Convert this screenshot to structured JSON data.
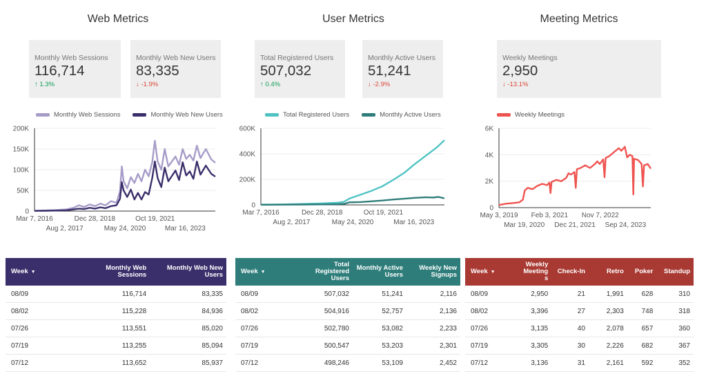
{
  "sections": [
    {
      "title": "Web Metrics",
      "cards": [
        {
          "label": "Monthly Web Sessions",
          "value": "116,714",
          "delta": "1.3%",
          "direction": "up",
          "arrow": "↑"
        },
        {
          "label": "Monthly Web New Users",
          "value": "83,335",
          "delta": "-1.9%",
          "direction": "down",
          "arrow": "↓"
        }
      ],
      "table": {
        "header_color": "#3b2f6b",
        "columns": [
          "Week",
          "Monthly Web Sessions",
          "Monthly Web New Users"
        ],
        "sort_icon": "▼",
        "rows": [
          [
            "08/09",
            "116,714",
            "83,335"
          ],
          [
            "08/02",
            "115,228",
            "84,936"
          ],
          [
            "07/26",
            "113,551",
            "85,020"
          ],
          [
            "07/19",
            "113,255",
            "85,094"
          ],
          [
            "07/12",
            "113,652",
            "85,937"
          ]
        ]
      }
    },
    {
      "title": "User Metrics",
      "cards": [
        {
          "label": "Total Registered Users",
          "value": "507,032",
          "delta": "0.4%",
          "direction": "up",
          "arrow": "↑"
        },
        {
          "label": "Monthly Active Users",
          "value": "51,241",
          "delta": "-2.9%",
          "direction": "down",
          "arrow": "↓"
        }
      ],
      "table": {
        "header_color": "#2e7d7a",
        "columns": [
          "Week",
          "Total Registered Users",
          "Monthly Active Users",
          "Weekly New Signups"
        ],
        "sort_icon": "▼",
        "rows": [
          [
            "08/09",
            "507,032",
            "51,241",
            "2,116"
          ],
          [
            "08/02",
            "504,916",
            "52,757",
            "2,136"
          ],
          [
            "07/26",
            "502,780",
            "53,082",
            "2,233"
          ],
          [
            "07/19",
            "500,547",
            "53,203",
            "2,301"
          ],
          [
            "07/12",
            "498,246",
            "53,109",
            "2,452"
          ]
        ]
      }
    },
    {
      "title": "Meeting Metrics",
      "cards": [
        {
          "label": "Weekly Meetings",
          "value": "2,950",
          "delta": "-13.1%",
          "direction": "down",
          "arrow": "↓"
        }
      ],
      "table": {
        "header_color": "#a93a33",
        "columns": [
          "Week",
          "Weekly Meeting s",
          "Check-In",
          "Retro",
          "Poker",
          "Standup"
        ],
        "sort_icon": "▼",
        "rows": [
          [
            "08/09",
            "2,950",
            "21",
            "1,991",
            "628",
            "310"
          ],
          [
            "08/02",
            "3,396",
            "27",
            "2,303",
            "748",
            "318"
          ],
          [
            "07/26",
            "3,135",
            "40",
            "2,078",
            "657",
            "360"
          ],
          [
            "07/19",
            "3,305",
            "30",
            "2,226",
            "682",
            "367"
          ],
          [
            "07/12",
            "3,136",
            "31",
            "2,161",
            "592",
            "352"
          ]
        ]
      }
    }
  ],
  "chart_data": [
    {
      "type": "line",
      "x_start": "2016-03-07",
      "x_end": "2024-08-09",
      "ylim": [
        0,
        180000
      ],
      "yticks": [
        "0",
        "50K",
        "100K",
        "150K",
        "200K"
      ],
      "ytick_values": [
        0,
        50000,
        100000,
        150000,
        200000
      ],
      "xticks_row1": [
        {
          "date": "2016-03-07",
          "label": "Mar 7, 2016"
        },
        {
          "date": "2018-12-28",
          "label": "Dec 28, 2018"
        },
        {
          "date": "2021-10-19",
          "label": "Oct 19, 2021"
        }
      ],
      "xticks_row2": [
        {
          "date": "2017-08-02",
          "label": "Aug 2, 2017"
        },
        {
          "date": "2020-05-24",
          "label": "May 24, 2020"
        },
        {
          "date": "2023-03-16",
          "label": "Mar 16, 2023"
        }
      ],
      "series": [
        {
          "name": "Monthly Web Sessions",
          "color": "#a79cc8",
          "points": [
            [
              "2016-03-07",
              1000
            ],
            [
              "2016-09-01",
              1500
            ],
            [
              "2017-03-01",
              2500
            ],
            [
              "2017-09-01",
              4000
            ],
            [
              "2018-01-01",
              8000
            ],
            [
              "2018-04-01",
              14000
            ],
            [
              "2018-07-01",
              10000
            ],
            [
              "2018-10-01",
              16000
            ],
            [
              "2019-01-01",
              12000
            ],
            [
              "2019-04-01",
              18000
            ],
            [
              "2019-07-01",
              14000
            ],
            [
              "2019-10-01",
              24000
            ],
            [
              "2020-01-01",
              20000
            ],
            [
              "2020-03-01",
              48000
            ],
            [
              "2020-04-01",
              108000
            ],
            [
              "2020-05-01",
              72000
            ],
            [
              "2020-07-01",
              55000
            ],
            [
              "2020-09-01",
              82000
            ],
            [
              "2020-11-01",
              68000
            ],
            [
              "2021-01-01",
              90000
            ],
            [
              "2021-03-01",
              72000
            ],
            [
              "2021-05-01",
              100000
            ],
            [
              "2021-07-01",
              84000
            ],
            [
              "2021-09-01",
              118000
            ],
            [
              "2021-10-15",
              170000
            ],
            [
              "2021-12-01",
              120000
            ],
            [
              "2022-02-01",
              100000
            ],
            [
              "2022-04-01",
              150000
            ],
            [
              "2022-06-01",
              108000
            ],
            [
              "2022-08-01",
              120000
            ],
            [
              "2022-10-01",
              132000
            ],
            [
              "2022-12-01",
              112000
            ],
            [
              "2023-02-01",
              150000
            ],
            [
              "2023-04-01",
              126000
            ],
            [
              "2023-06-01",
              136000
            ],
            [
              "2023-08-01",
              122000
            ],
            [
              "2023-10-01",
              158000
            ],
            [
              "2023-12-01",
              128000
            ],
            [
              "2024-03-01",
              150000
            ],
            [
              "2024-06-01",
              125000
            ],
            [
              "2024-08-09",
              116714
            ]
          ]
        },
        {
          "name": "Monthly Web New Users",
          "color": "#3b2f6b",
          "points": [
            [
              "2016-03-07",
              500
            ],
            [
              "2016-09-01",
              800
            ],
            [
              "2017-03-01",
              1200
            ],
            [
              "2017-09-01",
              2000
            ],
            [
              "2018-01-01",
              4000
            ],
            [
              "2018-04-01",
              6000
            ],
            [
              "2018-07-01",
              5000
            ],
            [
              "2018-10-01",
              8000
            ],
            [
              "2019-01-01",
              6000
            ],
            [
              "2019-04-01",
              9000
            ],
            [
              "2019-07-01",
              7000
            ],
            [
              "2019-10-01",
              12000
            ],
            [
              "2020-01-01",
              14000
            ],
            [
              "2020-03-01",
              30000
            ],
            [
              "2020-04-01",
              70000
            ],
            [
              "2020-05-01",
              50000
            ],
            [
              "2020-07-01",
              34000
            ],
            [
              "2020-09-01",
              52000
            ],
            [
              "2020-11-01",
              28000
            ],
            [
              "2021-01-01",
              44000
            ],
            [
              "2021-03-01",
              28000
            ],
            [
              "2021-05-01",
              46000
            ],
            [
              "2021-07-01",
              40000
            ],
            [
              "2021-09-01",
              80000
            ],
            [
              "2021-10-15",
              120000
            ],
            [
              "2021-12-01",
              80000
            ],
            [
              "2022-02-01",
              58000
            ],
            [
              "2022-04-01",
              105000
            ],
            [
              "2022-06-01",
              72000
            ],
            [
              "2022-08-01",
              85000
            ],
            [
              "2022-10-01",
              98000
            ],
            [
              "2022-12-01",
              75000
            ],
            [
              "2023-02-01",
              118000
            ],
            [
              "2023-04-01",
              86000
            ],
            [
              "2023-06-01",
              96000
            ],
            [
              "2023-08-01",
              78000
            ],
            [
              "2023-10-01",
              120000
            ],
            [
              "2023-12-01",
              88000
            ],
            [
              "2024-03-01",
              110000
            ],
            [
              "2024-06-01",
              90000
            ],
            [
              "2024-08-09",
              83335
            ]
          ]
        }
      ]
    },
    {
      "type": "line",
      "x_start": "2016-03-07",
      "x_end": "2024-08-09",
      "ylim": [
        0,
        600000
      ],
      "yticks": [
        "0",
        "200K",
        "400K",
        "600K"
      ],
      "ytick_values": [
        0,
        200000,
        400000,
        600000
      ],
      "xticks_row1": [
        {
          "date": "2016-03-07",
          "label": "Mar 7, 2016"
        },
        {
          "date": "2018-12-28",
          "label": "Dec 28, 2018"
        },
        {
          "date": "2021-10-19",
          "label": "Oct 19, 2021"
        }
      ],
      "xticks_row2": [
        {
          "date": "2017-08-02",
          "label": "Aug 2, 2017"
        },
        {
          "date": "2020-05-24",
          "label": "May 24, 2020"
        },
        {
          "date": "2023-03-16",
          "label": "Mar 16, 2023"
        }
      ],
      "series": [
        {
          "name": "Total Registered Users",
          "color": "#4fc3c3",
          "points": [
            [
              "2016-03-07",
              2000
            ],
            [
              "2017-03-01",
              4000
            ],
            [
              "2018-01-01",
              7000
            ],
            [
              "2019-01-01",
              12000
            ],
            [
              "2019-10-01",
              18000
            ],
            [
              "2020-01-01",
              25000
            ],
            [
              "2020-04-01",
              50000
            ],
            [
              "2020-10-01",
              80000
            ],
            [
              "2021-04-01",
              110000
            ],
            [
              "2021-10-01",
              145000
            ],
            [
              "2022-04-01",
              195000
            ],
            [
              "2022-10-01",
              250000
            ],
            [
              "2023-04-01",
              320000
            ],
            [
              "2023-10-01",
              385000
            ],
            [
              "2024-04-01",
              450000
            ],
            [
              "2024-08-09",
              507032
            ]
          ]
        },
        {
          "name": "Monthly Active Users",
          "color": "#2e7d7a",
          "points": [
            [
              "2016-03-07",
              1000
            ],
            [
              "2017-03-01",
              1500
            ],
            [
              "2018-01-01",
              2500
            ],
            [
              "2019-01-01",
              4000
            ],
            [
              "2019-10-01",
              6000
            ],
            [
              "2020-01-01",
              8000
            ],
            [
              "2020-04-01",
              20000
            ],
            [
              "2020-10-01",
              22000
            ],
            [
              "2021-04-01",
              28000
            ],
            [
              "2021-10-01",
              34000
            ],
            [
              "2022-04-01",
              42000
            ],
            [
              "2022-10-01",
              48000
            ],
            [
              "2023-04-01",
              55000
            ],
            [
              "2023-10-01",
              60000
            ],
            [
              "2024-02-01",
              58000
            ],
            [
              "2024-05-01",
              62000
            ],
            [
              "2024-08-09",
              51241
            ]
          ]
        }
      ]
    },
    {
      "type": "line",
      "x_start": "2019-05-03",
      "x_end": "2024-08-09",
      "ylim": [
        0,
        6000
      ],
      "yticks": [
        "0",
        "2K",
        "4K",
        "6K"
      ],
      "ytick_values": [
        0,
        2000,
        4000,
        6000
      ],
      "xticks_row1": [
        {
          "date": "2019-05-03",
          "label": "May 3, 2019"
        },
        {
          "date": "2021-02-03",
          "label": "Feb 3, 2021"
        },
        {
          "date": "2022-11-07",
          "label": "Nov 7, 2022"
        }
      ],
      "xticks_row2": [
        {
          "date": "2020-03-19",
          "label": "Mar 19, 2020"
        },
        {
          "date": "2021-12-21",
          "label": "Dec 21, 2021"
        },
        {
          "date": "2023-09-24",
          "label": "Sep 24, 2023"
        }
      ],
      "series": [
        {
          "name": "Weekly Meetings",
          "color": "#ef5350",
          "points": [
            [
              "2019-05-03",
              200
            ],
            [
              "2019-08-01",
              300
            ],
            [
              "2019-11-01",
              350
            ],
            [
              "2020-01-15",
              400
            ],
            [
              "2020-03-01",
              600
            ],
            [
              "2020-03-25",
              1300
            ],
            [
              "2020-05-01",
              1500
            ],
            [
              "2020-07-01",
              1400
            ],
            [
              "2020-09-01",
              1650
            ],
            [
              "2020-11-01",
              1800
            ],
            [
              "2021-01-01",
              1700
            ],
            [
              "2021-02-01",
              1900
            ],
            [
              "2021-02-15",
              1100
            ],
            [
              "2021-03-01",
              1950
            ],
            [
              "2021-05-01",
              2100
            ],
            [
              "2021-07-01",
              2000
            ],
            [
              "2021-09-01",
              2250
            ],
            [
              "2021-10-01",
              2600
            ],
            [
              "2021-11-01",
              2500
            ],
            [
              "2021-12-15",
              2700
            ],
            [
              "2022-01-01",
              1500
            ],
            [
              "2022-01-15",
              2900
            ],
            [
              "2022-03-01",
              3000
            ],
            [
              "2022-05-01",
              3200
            ],
            [
              "2022-07-01",
              3000
            ],
            [
              "2022-09-01",
              3300
            ],
            [
              "2022-10-01",
              3500
            ],
            [
              "2022-11-01",
              3300
            ],
            [
              "2022-12-15",
              3650
            ],
            [
              "2023-01-01",
              2300
            ],
            [
              "2023-01-15",
              3750
            ],
            [
              "2023-03-01",
              3900
            ],
            [
              "2023-05-01",
              4200
            ],
            [
              "2023-07-01",
              4500
            ],
            [
              "2023-08-01",
              4300
            ],
            [
              "2023-09-15",
              4600
            ],
            [
              "2023-10-15",
              3800
            ],
            [
              "2023-11-15",
              4000
            ],
            [
              "2023-12-20",
              3900
            ],
            [
              "2024-01-01",
              1000
            ],
            [
              "2024-01-10",
              3700
            ],
            [
              "2024-03-01",
              3600
            ],
            [
              "2024-04-15",
              3300
            ],
            [
              "2024-05-01",
              1600
            ],
            [
              "2024-05-15",
              3200
            ],
            [
              "2024-07-01",
              3300
            ],
            [
              "2024-08-09",
              2950
            ]
          ]
        }
      ]
    }
  ]
}
